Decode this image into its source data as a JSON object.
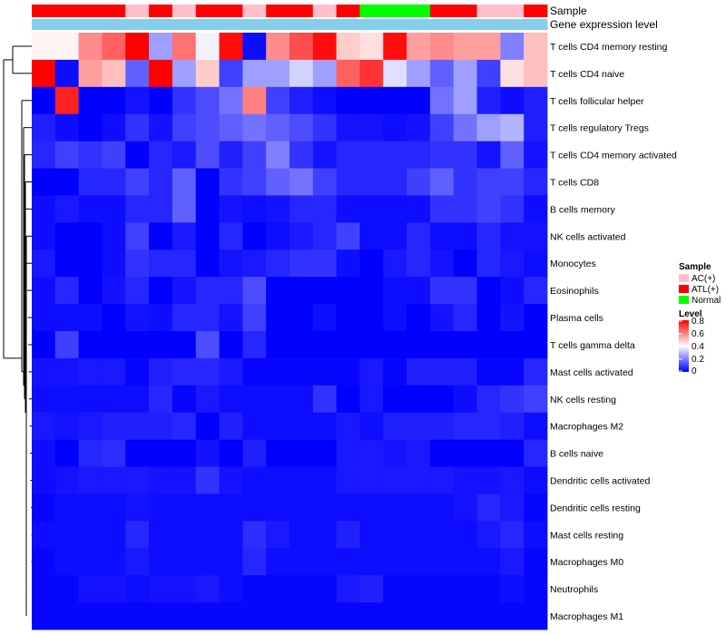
{
  "chart_data": {
    "type": "heatmap",
    "annotation_titles": {
      "sample": "Sample",
      "gene": "Gene expression level"
    },
    "sample_groups": [
      "ATL(+)",
      "ATL(+)",
      "ATL(+)",
      "ATL(+)",
      "AC(+)",
      "ATL(+)",
      "AC(+)",
      "ATL(+)",
      "ATL(+)",
      "AC(+)",
      "ATL(+)",
      "ATL(+)",
      "AC(+)",
      "ATL(+)",
      "Normal",
      "Normal",
      "Normal",
      "ATL(+)",
      "ATL(+)",
      "AC(+)",
      "AC(+)",
      "ATL(+)"
    ],
    "legend": {
      "sample_title": "Sample",
      "sample_entries": [
        "AC(+)",
        "ATL(+)",
        "Normal"
      ],
      "level_title": "Level",
      "level_ticks": [
        "0.8",
        "0.6",
        "0.4",
        "0.2",
        "0"
      ]
    },
    "colors": {
      "low": "#0000ff",
      "mid": "#ffffff",
      "high": "#ff0000",
      "ac": "#ffc0cb",
      "atl": "#ff0000",
      "normal": "#00ff00",
      "gene_band": "#87ceeb"
    },
    "color_scale": {
      "min": 0,
      "mid": 0.4,
      "max": 0.8
    },
    "rows": [
      "T cells CD4 memory resting",
      "T cells CD4 naive",
      "T cells follicular helper",
      "T cells regulatory  Tregs",
      "T cells CD4 memory activated",
      "T cells CD8",
      "B cells memory",
      "NK cells activated",
      "Monocytes",
      "Eosinophils",
      "Plasma cells",
      "T cells gamma delta",
      "Mast cells activated",
      "NK cells resting",
      "Macrophages M2",
      "B cells naive",
      "Dendritic cells activated",
      "Dendritic cells resting",
      "Mast cells resting",
      "Macrophages M0",
      "Neutrophils",
      "Macrophages M1"
    ],
    "values": [
      [
        0.42,
        0.42,
        0.58,
        0.65,
        0.8,
        0.25,
        0.62,
        0.38,
        0.78,
        0.02,
        0.58,
        0.68,
        0.78,
        0.48,
        0.45,
        0.78,
        0.55,
        0.58,
        0.55,
        0.55,
        0.2,
        0.5
      ],
      [
        0.8,
        0.02,
        0.55,
        0.5,
        0.15,
        0.8,
        0.25,
        0.48,
        0.1,
        0.25,
        0.25,
        0.33,
        0.25,
        0.65,
        0.72,
        0.35,
        0.25,
        0.15,
        0.25,
        0.1,
        0.45,
        0.5
      ],
      [
        0.0,
        0.75,
        0.0,
        0.0,
        0.03,
        0.0,
        0.08,
        0.12,
        0.18,
        0.6,
        0.1,
        0.05,
        0.02,
        0.0,
        0.0,
        0.0,
        0.0,
        0.18,
        0.25,
        0.05,
        0.02,
        0.05
      ],
      [
        0.05,
        0.02,
        0.0,
        0.02,
        0.08,
        0.03,
        0.1,
        0.12,
        0.15,
        0.18,
        0.15,
        0.12,
        0.08,
        0.03,
        0.03,
        0.02,
        0.03,
        0.1,
        0.18,
        0.25,
        0.28,
        0.05
      ],
      [
        0.06,
        0.1,
        0.08,
        0.1,
        0.0,
        0.06,
        0.04,
        0.12,
        0.05,
        0.1,
        0.2,
        0.08,
        0.03,
        0.06,
        0.06,
        0.06,
        0.06,
        0.08,
        0.08,
        0.03,
        0.15,
        0.03
      ],
      [
        0.0,
        0.0,
        0.06,
        0.06,
        0.1,
        0.06,
        0.15,
        0.0,
        0.08,
        0.1,
        0.15,
        0.18,
        0.1,
        0.06,
        0.06,
        0.06,
        0.1,
        0.15,
        0.08,
        0.1,
        0.1,
        0.06
      ],
      [
        0.02,
        0.04,
        0.02,
        0.02,
        0.06,
        0.06,
        0.15,
        0.0,
        0.03,
        0.02,
        0.03,
        0.06,
        0.06,
        0.02,
        0.02,
        0.02,
        0.02,
        0.08,
        0.08,
        0.1,
        0.08,
        0.02
      ],
      [
        0.02,
        0.0,
        0.0,
        0.02,
        0.1,
        0.0,
        0.04,
        0.0,
        0.06,
        0.0,
        0.02,
        0.04,
        0.06,
        0.1,
        0.02,
        0.02,
        0.06,
        0.02,
        0.02,
        0.06,
        0.03,
        0.03
      ],
      [
        0.04,
        0.0,
        0.0,
        0.02,
        0.08,
        0.06,
        0.06,
        0.0,
        0.03,
        0.04,
        0.06,
        0.08,
        0.08,
        0.02,
        0.0,
        0.04,
        0.06,
        0.03,
        0.0,
        0.06,
        0.04,
        0.02
      ],
      [
        0.02,
        0.06,
        0.0,
        0.03,
        0.06,
        0.0,
        0.03,
        0.06,
        0.06,
        0.12,
        0.0,
        0.0,
        0.0,
        0.0,
        0.0,
        0.02,
        0.02,
        0.08,
        0.08,
        0.0,
        0.02,
        0.06
      ],
      [
        0.02,
        0.02,
        0.02,
        0.0,
        0.03,
        0.02,
        0.06,
        0.06,
        0.03,
        0.1,
        0.0,
        0.0,
        0.02,
        0.0,
        0.0,
        0.02,
        0.0,
        0.03,
        0.06,
        0.0,
        0.03,
        0.0
      ],
      [
        0.0,
        0.1,
        0.0,
        0.0,
        0.0,
        0.0,
        0.0,
        0.12,
        0.0,
        0.06,
        0.0,
        0.0,
        0.0,
        0.0,
        0.0,
        0.0,
        0.0,
        0.0,
        0.0,
        0.0,
        0.0,
        0.0
      ],
      [
        0.03,
        0.03,
        0.04,
        0.04,
        0.01,
        0.05,
        0.06,
        0.06,
        0.04,
        0.01,
        0.01,
        0.01,
        0.01,
        0.01,
        0.04,
        0.01,
        0.05,
        0.05,
        0.05,
        0.01,
        0.01,
        0.06
      ],
      [
        0.02,
        0.02,
        0.02,
        0.02,
        0.02,
        0.06,
        0.01,
        0.04,
        0.02,
        0.02,
        0.02,
        0.02,
        0.08,
        0.0,
        0.04,
        0.0,
        0.0,
        0.0,
        0.02,
        0.06,
        0.08,
        0.1
      ],
      [
        0.04,
        0.03,
        0.04,
        0.05,
        0.05,
        0.05,
        0.06,
        0.0,
        0.05,
        0.02,
        0.02,
        0.02,
        0.02,
        0.04,
        0.02,
        0.05,
        0.05,
        0.05,
        0.06,
        0.06,
        0.05,
        0.02
      ],
      [
        0.02,
        0.0,
        0.06,
        0.07,
        0.0,
        0.0,
        0.0,
        0.03,
        0.0,
        0.05,
        0.0,
        0.0,
        0.0,
        0.04,
        0.04,
        0.03,
        0.04,
        0.0,
        0.0,
        0.0,
        0.0,
        0.06
      ],
      [
        0.02,
        0.03,
        0.04,
        0.04,
        0.04,
        0.03,
        0.03,
        0.08,
        0.03,
        0.02,
        0.02,
        0.02,
        0.02,
        0.04,
        0.04,
        0.04,
        0.04,
        0.04,
        0.03,
        0.03,
        0.04,
        0.02
      ],
      [
        0.01,
        0.02,
        0.02,
        0.02,
        0.03,
        0.02,
        0.02,
        0.02,
        0.02,
        0.02,
        0.02,
        0.02,
        0.02,
        0.02,
        0.02,
        0.02,
        0.02,
        0.02,
        0.03,
        0.06,
        0.04,
        0.01
      ],
      [
        0.02,
        0.02,
        0.02,
        0.02,
        0.06,
        0.02,
        0.02,
        0.02,
        0.02,
        0.07,
        0.04,
        0.02,
        0.02,
        0.05,
        0.02,
        0.02,
        0.02,
        0.02,
        0.02,
        0.04,
        0.06,
        0.02
      ],
      [
        0.01,
        0.02,
        0.02,
        0.02,
        0.04,
        0.02,
        0.02,
        0.02,
        0.02,
        0.06,
        0.02,
        0.02,
        0.02,
        0.02,
        0.02,
        0.02,
        0.02,
        0.02,
        0.02,
        0.02,
        0.04,
        0.01
      ],
      [
        0.01,
        0.01,
        0.03,
        0.03,
        0.02,
        0.03,
        0.03,
        0.04,
        0.02,
        0.01,
        0.01,
        0.01,
        0.01,
        0.04,
        0.05,
        0.01,
        0.01,
        0.01,
        0.01,
        0.01,
        0.02,
        0.01
      ],
      [
        0.01,
        0.01,
        0.01,
        0.01,
        0.01,
        0.01,
        0.01,
        0.01,
        0.01,
        0.01,
        0.01,
        0.01,
        0.01,
        0.01,
        0.01,
        0.01,
        0.01,
        0.01,
        0.01,
        0.01,
        0.01,
        0.01
      ]
    ]
  }
}
